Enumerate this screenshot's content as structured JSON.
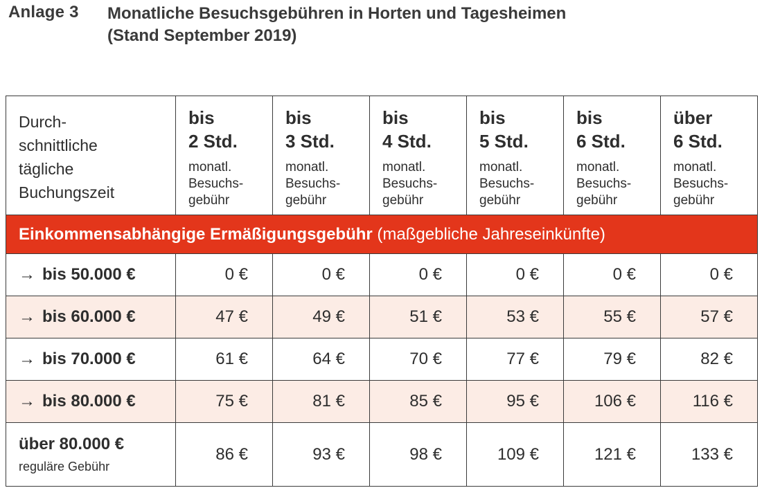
{
  "header": {
    "annex": "Anlage 3",
    "title_line1": "Monatliche Besuchsgebühren in Horten und Tagesheimen",
    "title_line2": "(Stand September 2019)"
  },
  "table": {
    "first_header_lines": [
      "Durch-",
      "schnittliche",
      "tägliche",
      "Buchungszeit"
    ],
    "columns": [
      {
        "prefix": "bis",
        "hours": "2 Std.",
        "sub": [
          "monatl.",
          "Besuchs-",
          "gebühr"
        ]
      },
      {
        "prefix": "bis",
        "hours": "3 Std.",
        "sub": [
          "monatl.",
          "Besuchs-",
          "gebühr"
        ]
      },
      {
        "prefix": "bis",
        "hours": "4 Std.",
        "sub": [
          "monatl.",
          "Besuchs-",
          "gebühr"
        ]
      },
      {
        "prefix": "bis",
        "hours": "5 Std.",
        "sub": [
          "monatl.",
          "Besuchs-",
          "gebühr"
        ]
      },
      {
        "prefix": "bis",
        "hours": "6 Std.",
        "sub": [
          "monatl.",
          "Besuchs-",
          "gebühr"
        ]
      },
      {
        "prefix": "über",
        "hours": "6 Std.",
        "sub": [
          "monatl.",
          "Besuchs-",
          "gebühr"
        ]
      }
    ],
    "section": {
      "bold": "Einkommensabhängige Ermäßigungsgebühr",
      "normal": "(maßgebliche Jahreseinkünfte)",
      "color": "#e3361b"
    },
    "rows": [
      {
        "arrow": "→",
        "label": "bis 50.000 €",
        "values": [
          "0 €",
          "0 €",
          "0 €",
          "0 €",
          "0 €",
          "0 €"
        ]
      },
      {
        "arrow": "→",
        "label": "bis 60.000 €",
        "values": [
          "47 €",
          "49 €",
          "51 €",
          "53 €",
          "55 €",
          "57 €"
        ]
      },
      {
        "arrow": "→",
        "label": "bis 70.000 €",
        "values": [
          "61 €",
          "64 €",
          "70 €",
          "77 €",
          "79 €",
          "82 €"
        ]
      },
      {
        "arrow": "→",
        "label": "bis 80.000 €",
        "values": [
          "75 €",
          "81 €",
          "85 €",
          "95 €",
          "106 €",
          "116 €"
        ]
      }
    ],
    "last_row": {
      "label": "über 80.000 €",
      "sublabel": "reguläre Gebühr",
      "values": [
        "86 €",
        "93 €",
        "98 €",
        "109 €",
        "121 €",
        "133 €"
      ]
    },
    "shade_color": "#fcece5"
  }
}
